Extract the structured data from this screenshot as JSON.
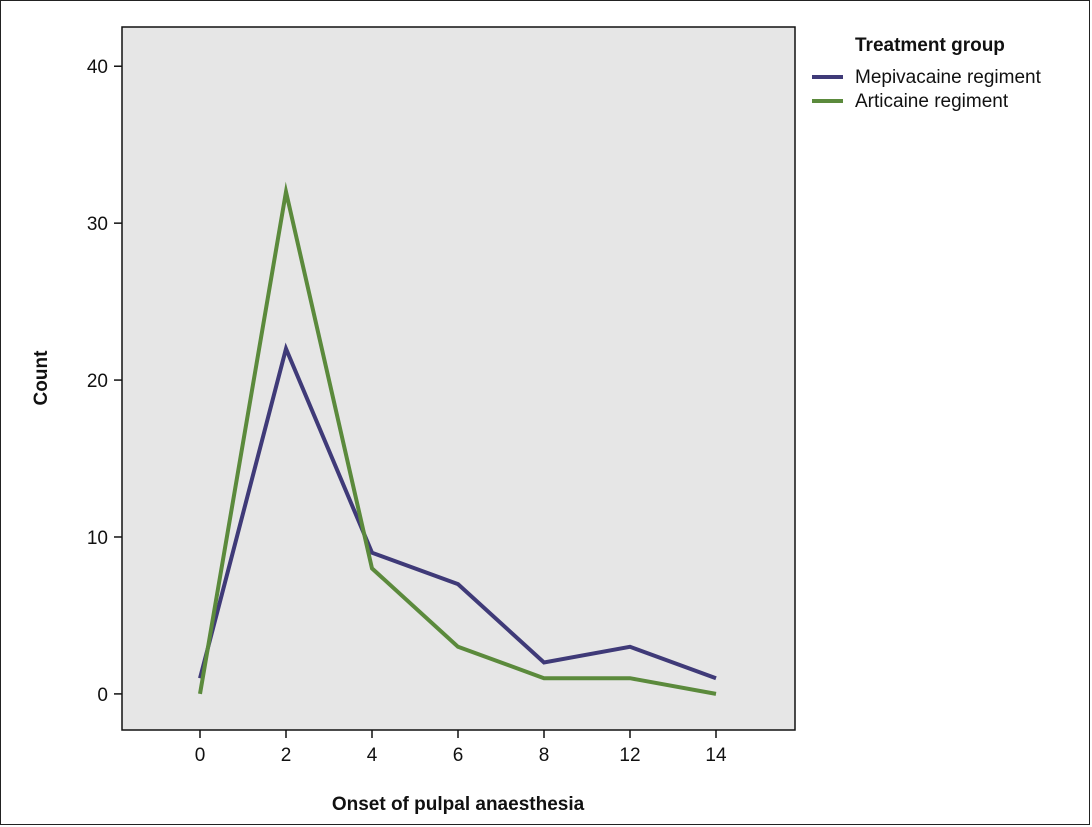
{
  "chart_data": {
    "type": "line",
    "xlabel": "Onset of pulpal anaesthesia",
    "ylabel": "Count",
    "categories": [
      "0",
      "2",
      "4",
      "6",
      "8",
      "12",
      "14"
    ],
    "y_ticks": [
      0,
      10,
      20,
      30,
      40
    ],
    "ylim": [
      -2.3,
      42.5
    ],
    "grid": false,
    "legend": {
      "title": "Treatment group",
      "placement": "top-right, outside plot"
    },
    "series": [
      {
        "name": "Mepivacaine regiment",
        "color": "#3f3a78",
        "values": [
          1,
          22,
          9,
          7,
          2,
          3,
          1
        ]
      },
      {
        "name": "Articaine regiment",
        "color": "#5b8a3c",
        "values": [
          0,
          32,
          8,
          3,
          1,
          1,
          0
        ]
      }
    ],
    "plot_background": "#e6e6e6"
  }
}
